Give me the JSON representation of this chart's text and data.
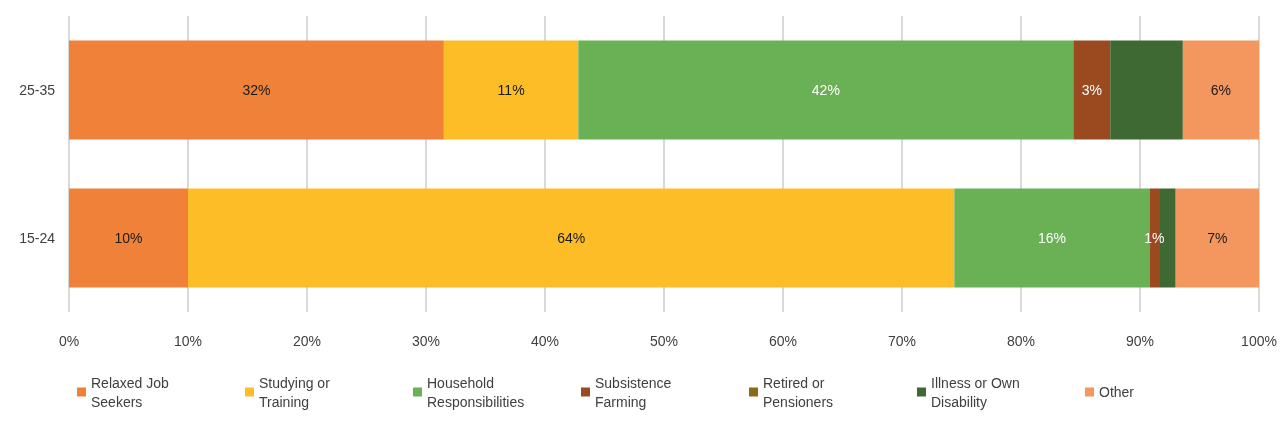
{
  "chart_data": {
    "type": "bar",
    "orientation": "horizontal",
    "stacked": true,
    "categories": [
      "25-35",
      "15-24"
    ],
    "xlim": [
      0,
      100
    ],
    "xticks": [
      {
        "value": 0,
        "label": "0%"
      },
      {
        "value": 10,
        "label": "10%"
      },
      {
        "value": 20,
        "label": "20%"
      },
      {
        "value": 30,
        "label": "30%"
      },
      {
        "value": 40,
        "label": "40%"
      },
      {
        "value": 50,
        "label": "50%"
      },
      {
        "value": 60,
        "label": "60%"
      },
      {
        "value": 70,
        "label": "70%"
      },
      {
        "value": 80,
        "label": "80%"
      },
      {
        "value": 90,
        "label": "90%"
      },
      {
        "value": 100,
        "label": "100%"
      }
    ],
    "grid": "x",
    "legend": "bottom",
    "series": [
      {
        "name": "Relaxed Job Seekers",
        "color": "#f08139",
        "values": [
          31.5,
          10.0
        ],
        "value_labels": [
          "32%",
          "10%"
        ]
      },
      {
        "name": "Studying or Training",
        "color": "#fdbd26",
        "values": [
          11.3,
          64.4
        ],
        "value_labels": [
          "11%",
          "64%"
        ]
      },
      {
        "name": "Household Responsibilities",
        "color": "#6ab155",
        "values": [
          41.6,
          16.4
        ],
        "value_labels": [
          "42%",
          "16%"
        ]
      },
      {
        "name": "Subsistence Farming",
        "color": "#9b4a1f",
        "values": [
          3.1,
          0.8
        ],
        "value_labels": [
          "3%",
          "1%"
        ]
      },
      {
        "name": "Retired or Pensioners",
        "color": "#8b6b17",
        "values": [
          null,
          null
        ]
      },
      {
        "name": "Illness or Own Disability",
        "color": "#3f6933",
        "values": [
          6.1,
          1.4
        ]
      },
      {
        "name": "Other",
        "color": "#f4975f",
        "values": [
          6.4,
          7.0
        ],
        "value_labels": [
          "6%",
          "7%"
        ]
      }
    ]
  }
}
